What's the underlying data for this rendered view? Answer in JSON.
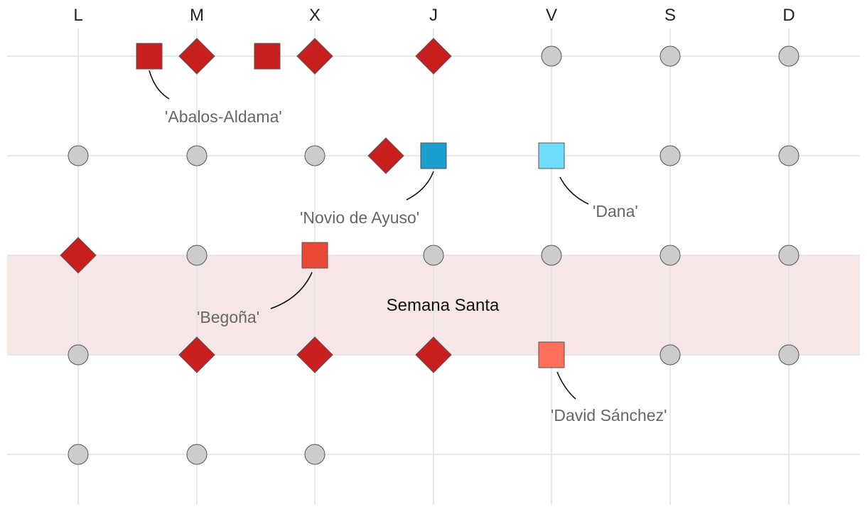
{
  "chart_data": {
    "type": "scatter",
    "title": "",
    "x_categories": [
      "L",
      "M",
      "X",
      "J",
      "V",
      "S",
      "D"
    ],
    "rows": [
      1,
      2,
      3,
      4,
      5
    ],
    "band": {
      "label": "Semana Santa",
      "from_row": 3,
      "to_row": 4,
      "color": "#f6e6e6"
    },
    "grid": true,
    "colors": {
      "none": "#cccccc",
      "red_diamond": "#c81e1e",
      "dark_red_square": "#c81e1e",
      "blue_square": "#1a9fcf",
      "light_blue_square": "#6fdcfa",
      "red_square": "#ec4836",
      "salmon_square": "#ff6f5a"
    },
    "days": [
      {
        "week": 1,
        "day": "M",
        "marks": [
          {
            "shape": "square",
            "color": "dark_red_square"
          },
          {
            "shape": "diamond",
            "color": "red_diamond"
          }
        ]
      },
      {
        "week": 1,
        "day": "X",
        "marks": [
          {
            "shape": "square",
            "color": "dark_red_square"
          },
          {
            "shape": "diamond",
            "color": "red_diamond"
          }
        ]
      },
      {
        "week": 1,
        "day": "J",
        "marks": [
          {
            "shape": "diamond",
            "color": "red_diamond"
          }
        ]
      },
      {
        "week": 1,
        "day": "V",
        "marks": [
          {
            "shape": "circle",
            "color": "none"
          }
        ]
      },
      {
        "week": 1,
        "day": "S",
        "marks": [
          {
            "shape": "circle",
            "color": "none"
          }
        ]
      },
      {
        "week": 1,
        "day": "D",
        "marks": [
          {
            "shape": "circle",
            "color": "none"
          }
        ]
      },
      {
        "week": 2,
        "day": "L",
        "marks": [
          {
            "shape": "circle",
            "color": "none"
          }
        ]
      },
      {
        "week": 2,
        "day": "M",
        "marks": [
          {
            "shape": "circle",
            "color": "none"
          }
        ]
      },
      {
        "week": 2,
        "day": "X",
        "marks": [
          {
            "shape": "circle",
            "color": "none"
          }
        ]
      },
      {
        "week": 2,
        "day": "J",
        "marks": [
          {
            "shape": "diamond",
            "color": "red_diamond"
          },
          {
            "shape": "square",
            "color": "blue_square"
          }
        ]
      },
      {
        "week": 2,
        "day": "V",
        "marks": [
          {
            "shape": "square",
            "color": "light_blue_square"
          }
        ]
      },
      {
        "week": 2,
        "day": "S",
        "marks": [
          {
            "shape": "circle",
            "color": "none"
          }
        ]
      },
      {
        "week": 2,
        "day": "D",
        "marks": [
          {
            "shape": "circle",
            "color": "none"
          }
        ]
      },
      {
        "week": 3,
        "day": "L",
        "marks": [
          {
            "shape": "diamond",
            "color": "red_diamond"
          }
        ]
      },
      {
        "week": 3,
        "day": "M",
        "marks": [
          {
            "shape": "circle",
            "color": "none"
          }
        ]
      },
      {
        "week": 3,
        "day": "X",
        "marks": [
          {
            "shape": "square",
            "color": "red_square"
          }
        ]
      },
      {
        "week": 3,
        "day": "J",
        "marks": [
          {
            "shape": "circle",
            "color": "none"
          }
        ]
      },
      {
        "week": 3,
        "day": "V",
        "marks": [
          {
            "shape": "circle",
            "color": "none"
          }
        ]
      },
      {
        "week": 3,
        "day": "S",
        "marks": [
          {
            "shape": "circle",
            "color": "none"
          }
        ]
      },
      {
        "week": 3,
        "day": "D",
        "marks": [
          {
            "shape": "circle",
            "color": "none"
          }
        ]
      },
      {
        "week": 4,
        "day": "L",
        "marks": [
          {
            "shape": "circle",
            "color": "none"
          }
        ]
      },
      {
        "week": 4,
        "day": "M",
        "marks": [
          {
            "shape": "diamond",
            "color": "red_diamond"
          }
        ]
      },
      {
        "week": 4,
        "day": "X",
        "marks": [
          {
            "shape": "diamond",
            "color": "red_diamond"
          }
        ]
      },
      {
        "week": 4,
        "day": "J",
        "marks": [
          {
            "shape": "diamond",
            "color": "red_diamond"
          }
        ]
      },
      {
        "week": 4,
        "day": "V",
        "marks": [
          {
            "shape": "square",
            "color": "salmon_square"
          }
        ]
      },
      {
        "week": 4,
        "day": "S",
        "marks": [
          {
            "shape": "circle",
            "color": "none"
          }
        ]
      },
      {
        "week": 4,
        "day": "D",
        "marks": [
          {
            "shape": "circle",
            "color": "none"
          }
        ]
      },
      {
        "week": 5,
        "day": "L",
        "marks": [
          {
            "shape": "circle",
            "color": "none"
          }
        ]
      },
      {
        "week": 5,
        "day": "M",
        "marks": [
          {
            "shape": "circle",
            "color": "none"
          }
        ]
      },
      {
        "week": 5,
        "day": "X",
        "marks": [
          {
            "shape": "circle",
            "color": "none"
          }
        ]
      }
    ],
    "annotations": [
      {
        "text": "'Abalos-Aldama'",
        "week": 1,
        "day": "M",
        "mark_index": 0
      },
      {
        "text": "'Novio de Ayuso'",
        "week": 2,
        "day": "J",
        "mark_index": 1
      },
      {
        "text": "'Dana'",
        "week": 2,
        "day": "V",
        "mark_index": 0
      },
      {
        "text": "'Begoña'",
        "week": 3,
        "day": "X",
        "mark_index": 0
      },
      {
        "text": "'David Sánchez'",
        "week": 4,
        "day": "V",
        "mark_index": 0
      }
    ]
  }
}
